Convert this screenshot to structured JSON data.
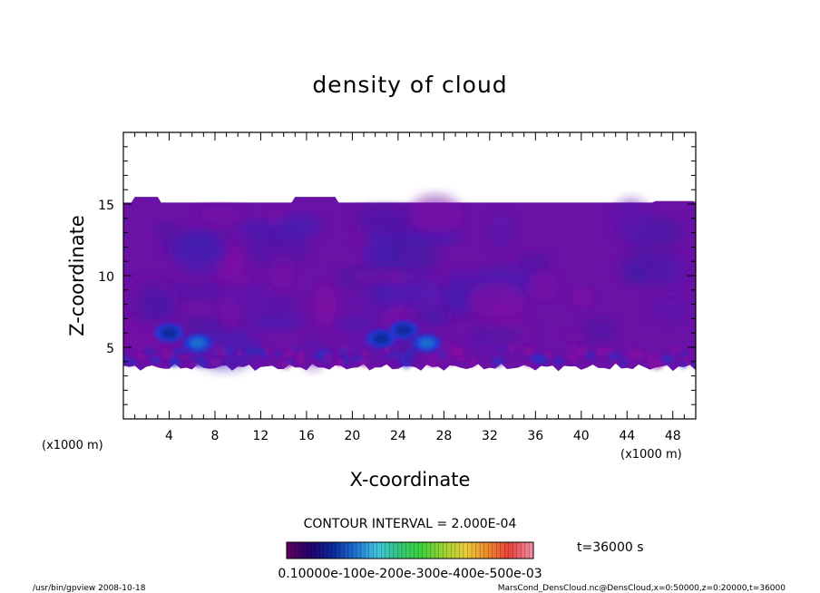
{
  "chart_data": {
    "type": "heatmap",
    "title": "density of cloud",
    "xlabel": "X-coordinate",
    "ylabel": "Z-coordinate",
    "x_unit": "(x1000 m)",
    "y_unit": "(x1000 m)",
    "xlim": [
      0,
      50
    ],
    "ylim": [
      0,
      20
    ],
    "x_ticks": [
      4,
      8,
      12,
      16,
      20,
      24,
      28,
      32,
      36,
      40,
      44,
      48
    ],
    "y_ticks": [
      5,
      10,
      15
    ],
    "cloud_layer": {
      "bottom": 3.6,
      "top": 15.1,
      "top_bumps": [
        {
          "x": [
            1.0,
            3.0
          ],
          "z": 15.5
        },
        {
          "x": [
            15.0,
            18.5
          ],
          "z": 15.5
        },
        {
          "x": [
            46.5,
            49.8
          ],
          "z": 15.2
        }
      ]
    },
    "bright_cells": [
      {
        "x": 26.5,
        "z": 5.3,
        "level": 0.00017
      },
      {
        "x": 6.5,
        "z": 5.3,
        "level": 0.00014
      },
      {
        "x": 4.0,
        "z": 6.0,
        "level": 0.00011
      },
      {
        "x": 22.5,
        "z": 5.6,
        "level": 0.00011
      },
      {
        "x": 24.5,
        "z": 6.2,
        "level": 0.0001
      }
    ],
    "contour_interval_label": "CONTOUR INTERVAL = 2.000E-04",
    "time_label": "t=36000 s",
    "colorbar": {
      "min": 0.0,
      "max": 0.0006,
      "tick_labels": "0.10000e-100e-200e-300e-400e-500e-03",
      "colors": [
        "#5a0060",
        "#24006f",
        "#0a2a9a",
        "#1f6fd0",
        "#3fc4e0",
        "#34c67a",
        "#3cd23c",
        "#9ad232",
        "#e8cf3a",
        "#ef8a2a",
        "#e8403a",
        "#f08aa0"
      ]
    }
  },
  "footer": {
    "left": "/usr/bin/gpview   2008-10-18",
    "right": "MarsCond_DensCloud.nc@DensCloud,x=0:50000,z=0:20000,t=36000"
  }
}
